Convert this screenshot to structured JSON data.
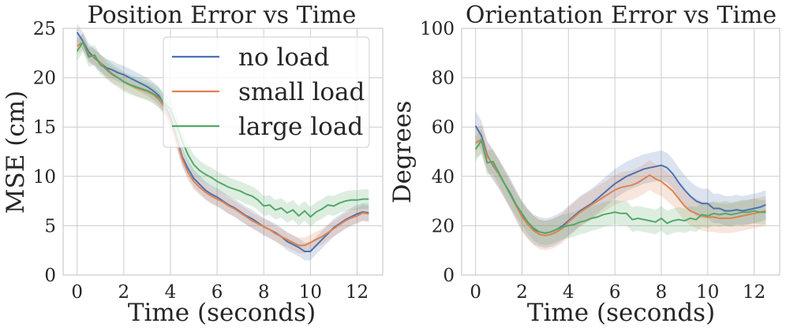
{
  "chart_data": [
    {
      "type": "line",
      "title": "Position Error vs Time",
      "xlabel": "Time (seconds)",
      "ylabel": "MSE (cm)",
      "xlim": [
        -0.6,
        13.1
      ],
      "ylim": [
        0,
        25
      ],
      "xticks": [
        0,
        2,
        4,
        6,
        8,
        10,
        12
      ],
      "yticks": [
        0,
        5,
        10,
        15,
        20,
        25
      ],
      "grid": true,
      "legend": "top-right",
      "series": [
        {
          "name": "no load",
          "color": "#4c72b0",
          "x": [
            0,
            0.25,
            0.5,
            0.75,
            1,
            1.25,
            1.5,
            1.75,
            2,
            2.25,
            2.5,
            2.75,
            3,
            3.25,
            3.5,
            3.75,
            4,
            4.25,
            4.5,
            4.75,
            5,
            5.25,
            5.5,
            5.75,
            6,
            6.25,
            6.5,
            6.75,
            7,
            7.25,
            7.5,
            7.75,
            8,
            8.25,
            8.5,
            8.75,
            9,
            9.25,
            9.5,
            9.75,
            10,
            10.25,
            10.5,
            10.75,
            11,
            11.25,
            11.5,
            11.75,
            12,
            12.25,
            12.5
          ],
          "y": [
            24.6,
            23.7,
            22.6,
            22.0,
            21.5,
            21.0,
            20.8,
            20.5,
            20.3,
            20.0,
            19.7,
            19.4,
            19.1,
            18.7,
            18.2,
            17.2,
            16.0,
            14.0,
            12.0,
            10.8,
            9.8,
            9.2,
            8.6,
            8.2,
            7.9,
            7.5,
            7.1,
            6.8,
            6.4,
            6.0,
            5.7,
            5.3,
            4.9,
            4.6,
            4.3,
            3.9,
            3.4,
            3.1,
            2.8,
            2.4,
            2.4,
            3.0,
            3.6,
            4.2,
            4.8,
            5.2,
            5.6,
            5.9,
            6.2,
            6.4,
            6.3
          ],
          "band": 0.9
        },
        {
          "name": "small load",
          "color": "#dd8452",
          "x": [
            0,
            0.25,
            0.5,
            0.75,
            1,
            1.25,
            1.5,
            1.75,
            2,
            2.25,
            2.5,
            2.75,
            3,
            3.25,
            3.5,
            3.75,
            4,
            4.25,
            4.5,
            4.75,
            5,
            5.25,
            5.5,
            5.75,
            6,
            6.25,
            6.5,
            6.75,
            7,
            7.25,
            7.5,
            7.75,
            8,
            8.25,
            8.5,
            8.75,
            9,
            9.25,
            9.5,
            9.75,
            10,
            10.25,
            10.5,
            10.75,
            11,
            11.25,
            11.5,
            11.75,
            12,
            12.25,
            12.5
          ],
          "y": [
            23.2,
            23.6,
            22.3,
            22.1,
            21.5,
            20.8,
            20.3,
            20.0,
            19.6,
            19.3,
            19.0,
            18.8,
            18.6,
            18.3,
            17.8,
            17.0,
            15.6,
            13.8,
            11.8,
            10.4,
            9.5,
            8.9,
            8.4,
            8.0,
            7.7,
            7.4,
            7.0,
            6.7,
            6.3,
            5.9,
            5.5,
            5.2,
            4.9,
            4.6,
            4.2,
            3.9,
            3.6,
            3.3,
            3.0,
            3.0,
            3.3,
            3.6,
            3.9,
            4.3,
            4.7,
            5.1,
            5.5,
            5.8,
            6.0,
            6.3,
            6.2
          ],
          "band": 0.8
        },
        {
          "name": "large load",
          "color": "#55a868",
          "x": [
            0,
            0.25,
            0.5,
            0.75,
            1,
            1.25,
            1.5,
            1.75,
            2,
            2.25,
            2.5,
            2.75,
            3,
            3.25,
            3.5,
            3.75,
            4,
            4.25,
            4.5,
            4.75,
            5,
            5.25,
            5.5,
            5.75,
            6,
            6.25,
            6.5,
            6.75,
            7,
            7.25,
            7.5,
            7.75,
            8,
            8.25,
            8.5,
            8.75,
            9,
            9.25,
            9.5,
            9.75,
            10,
            10.25,
            10.5,
            10.75,
            11,
            11.25,
            11.5,
            11.75,
            12,
            12.25,
            12.5
          ],
          "y": [
            22.7,
            23.6,
            22.1,
            22.3,
            21.3,
            20.9,
            20.4,
            20.0,
            19.6,
            19.3,
            19.1,
            18.9,
            18.7,
            18.4,
            18.0,
            17.4,
            16.8,
            15.3,
            13.6,
            12.2,
            11.2,
            10.6,
            10.2,
            9.9,
            9.5,
            9.2,
            8.9,
            8.7,
            8.5,
            8.2,
            8.0,
            7.6,
            7.0,
            7.1,
            6.6,
            6.8,
            6.3,
            6.6,
            6.0,
            6.5,
            5.9,
            6.4,
            6.7,
            7.1,
            7.0,
            7.3,
            7.5,
            7.6,
            7.6,
            7.7,
            7.7
          ],
          "band": 1.0
        }
      ]
    },
    {
      "type": "line",
      "title": "Orientation Error vs Time",
      "xlabel": "Time (seconds)",
      "ylabel": "Degrees",
      "xlim": [
        -0.6,
        13.1
      ],
      "ylim": [
        0,
        100
      ],
      "xticks": [
        0,
        2,
        4,
        6,
        8,
        10,
        12
      ],
      "yticks": [
        0,
        20,
        40,
        60,
        80,
        100
      ],
      "grid": true,
      "series": [
        {
          "name": "no load",
          "color": "#4c72b0",
          "x": [
            0,
            0.25,
            0.5,
            0.75,
            1,
            1.25,
            1.5,
            1.75,
            2,
            2.25,
            2.5,
            2.75,
            3,
            3.25,
            3.5,
            3.75,
            4,
            4.25,
            4.5,
            4.75,
            5,
            5.25,
            5.5,
            5.75,
            6,
            6.25,
            6.5,
            6.75,
            7,
            7.25,
            7.5,
            7.75,
            8,
            8.25,
            8.5,
            8.75,
            9,
            9.25,
            9.5,
            9.75,
            10,
            10.25,
            10.5,
            10.75,
            11,
            11.25,
            11.5,
            11.75,
            12,
            12.25,
            12.5
          ],
          "y": [
            60.5,
            56.5,
            48.5,
            44.5,
            41.0,
            37.0,
            33.0,
            28.5,
            24.0,
            21.0,
            18.5,
            17.5,
            17.0,
            17.5,
            18.5,
            20.0,
            22.0,
            24.0,
            26.0,
            27.5,
            29.0,
            31.0,
            33.0,
            35.0,
            37.0,
            38.5,
            40.0,
            41.0,
            42.0,
            43.0,
            43.5,
            44.0,
            44.5,
            43.5,
            41.0,
            37.5,
            34.5,
            32.0,
            30.0,
            29.0,
            29.0,
            27.0,
            27.0,
            26.0,
            26.0,
            26.5,
            26.0,
            26.5,
            27.0,
            27.5,
            28.5
          ],
          "band": 6
        },
        {
          "name": "small load",
          "color": "#dd8452",
          "x": [
            0,
            0.25,
            0.5,
            0.75,
            1,
            1.25,
            1.5,
            1.75,
            2,
            2.25,
            2.5,
            2.75,
            3,
            3.25,
            3.5,
            3.75,
            4,
            4.25,
            4.5,
            4.75,
            5,
            5.25,
            5.5,
            5.75,
            6,
            6.25,
            6.5,
            6.75,
            7,
            7.25,
            7.5,
            7.75,
            8,
            8.25,
            8.5,
            8.75,
            9,
            9.25,
            9.5,
            9.75,
            10,
            10.25,
            10.5,
            10.75,
            11,
            11.25,
            11.5,
            11.75,
            12,
            12.25,
            12.5
          ],
          "y": [
            53.5,
            55.0,
            48.0,
            45.0,
            41.0,
            37.0,
            32.5,
            28.0,
            23.5,
            20.5,
            18.0,
            16.5,
            16.0,
            16.5,
            17.5,
            19.0,
            21.5,
            23.5,
            25.5,
            27.0,
            28.5,
            30.0,
            31.5,
            33.0,
            34.5,
            35.5,
            36.0,
            36.5,
            37.5,
            39.0,
            40.5,
            39.0,
            38.0,
            36.0,
            34.0,
            31.0,
            28.0,
            26.0,
            25.0,
            24.0,
            23.5,
            23.5,
            23.0,
            23.0,
            23.0,
            23.5,
            24.0,
            24.5,
            25.0,
            25.5,
            26.0
          ],
          "band": 6
        },
        {
          "name": "large load",
          "color": "#55a868",
          "x": [
            0,
            0.25,
            0.5,
            0.75,
            1,
            1.25,
            1.5,
            1.75,
            2,
            2.25,
            2.5,
            2.75,
            3,
            3.25,
            3.5,
            3.75,
            4,
            4.25,
            4.5,
            4.75,
            5,
            5.25,
            5.5,
            5.75,
            6,
            6.25,
            6.5,
            6.75,
            7,
            7.25,
            7.5,
            7.75,
            8,
            8.25,
            8.5,
            8.75,
            9,
            9.25,
            9.5,
            9.75,
            10,
            10.25,
            10.5,
            10.75,
            11,
            11.25,
            11.5,
            11.75,
            12,
            12.25,
            12.5
          ],
          "y": [
            51.0,
            54.5,
            45.5,
            46.0,
            41.5,
            37.0,
            32.5,
            28.5,
            25.0,
            21.5,
            19.0,
            17.5,
            17.0,
            17.5,
            18.5,
            19.5,
            20.0,
            20.5,
            21.5,
            22.0,
            23.0,
            23.5,
            24.5,
            25.0,
            25.5,
            25.0,
            25.0,
            22.5,
            23.0,
            22.5,
            22.0,
            21.5,
            23.0,
            21.0,
            22.0,
            22.5,
            22.0,
            23.0,
            22.5,
            24.5,
            24.0,
            25.0,
            24.5,
            25.0,
            24.5,
            25.0,
            25.5,
            25.5,
            26.0,
            25.5,
            25.5
          ],
          "band": 5
        }
      ]
    }
  ]
}
